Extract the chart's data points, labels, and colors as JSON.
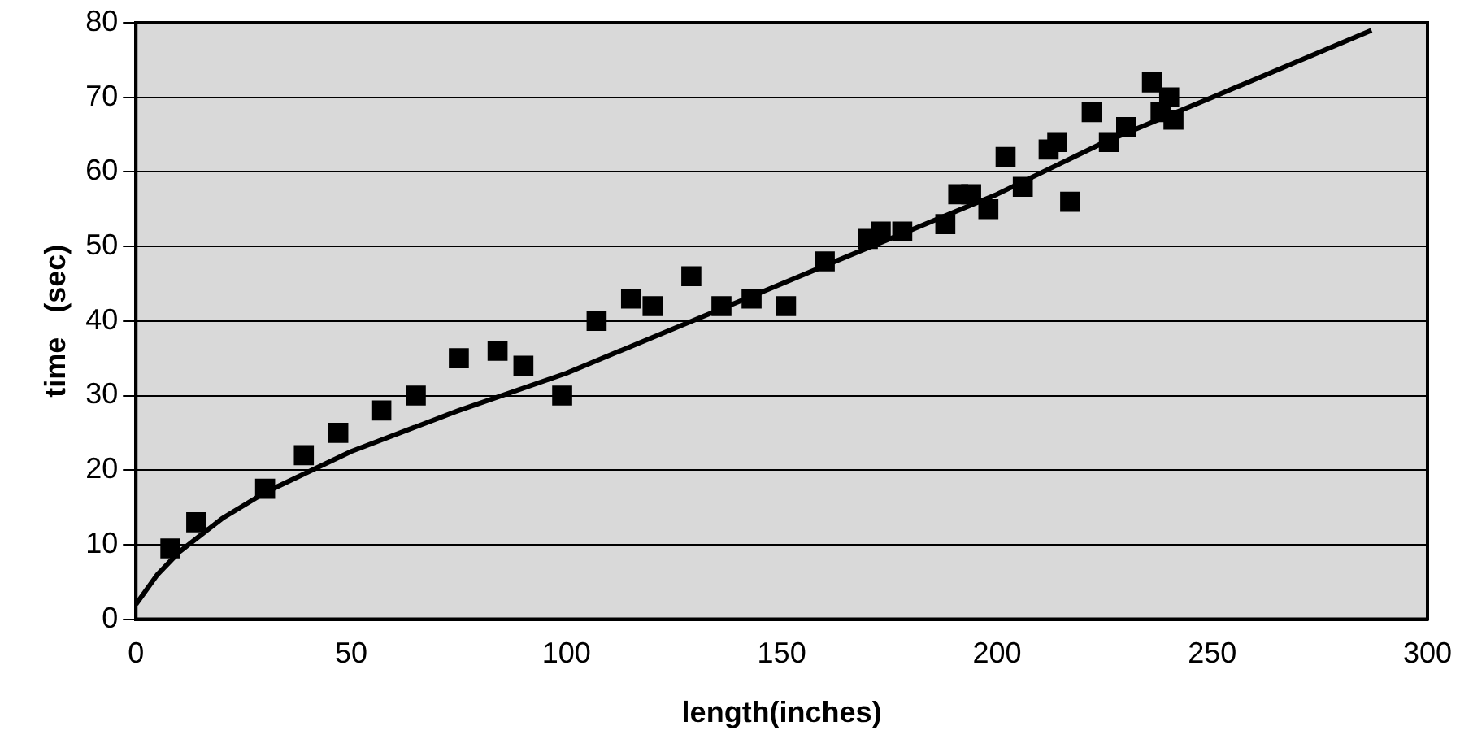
{
  "chart_data": {
    "type": "scatter",
    "xlabel": "length(inches)",
    "ylabel": "time   (sec)",
    "xlim": [
      0,
      300
    ],
    "xticks": [
      0,
      50,
      100,
      150,
      200,
      250,
      300
    ],
    "ylim": [
      0,
      80
    ],
    "yticks": [
      0,
      10,
      20,
      30,
      40,
      50,
      60,
      70,
      80
    ],
    "grid": "y",
    "marker": "square",
    "legend": false,
    "series": [
      {
        "type": "scatter",
        "color": "#000000",
        "x": [
          8,
          14,
          30,
          39,
          47,
          57,
          65,
          75,
          84,
          90,
          99,
          107,
          115,
          120,
          129,
          136,
          143,
          151,
          160,
          170,
          173,
          178,
          188,
          191,
          194,
          198,
          202,
          206,
          212,
          214,
          217,
          222,
          226,
          230,
          236,
          238,
          240,
          241
        ],
        "values": [
          9.5,
          13,
          17.5,
          22,
          25,
          28,
          30,
          35,
          36,
          34,
          30,
          40,
          43,
          42,
          46,
          42,
          43,
          42,
          48,
          51,
          52,
          52,
          53,
          57,
          57,
          55,
          62,
          58,
          63,
          64,
          56,
          68,
          64,
          66,
          72,
          68,
          70,
          67
        ]
      },
      {
        "type": "line",
        "color": "#000000",
        "marker": "none",
        "x": [
          0,
          5,
          10,
          20,
          30,
          50,
          75,
          100,
          125,
          150,
          175,
          200,
          225,
          250,
          287
        ],
        "values": [
          2,
          6,
          9,
          13.5,
          17,
          22.5,
          28,
          33,
          39,
          45,
          51,
          57,
          64,
          70,
          79
        ]
      }
    ]
  }
}
